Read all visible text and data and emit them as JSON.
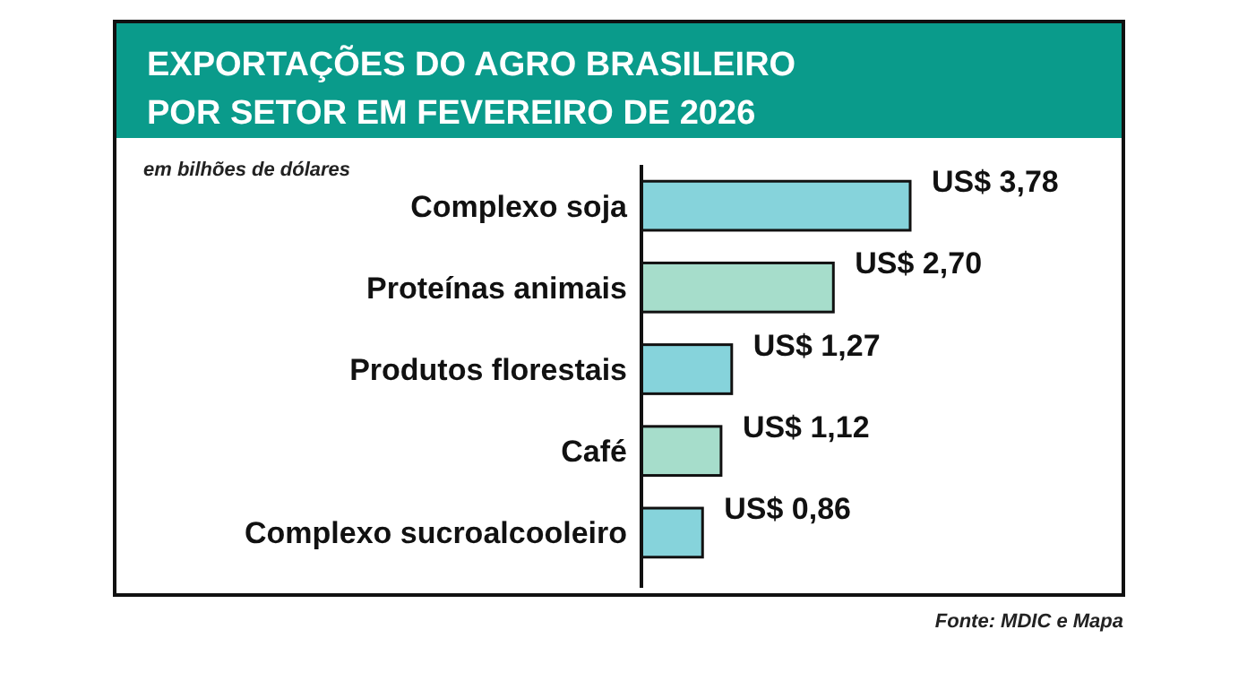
{
  "chart_data": {
    "type": "bar",
    "orientation": "horizontal",
    "title": "EXPORTAÇÕES DO AGRO BRASILEIRO\nPOR SETOR EM FEVEREIRO DE 2026",
    "subtitle": "em bilhões de dólares",
    "annotations": [
      "Fonte: MDIC e Mapa"
    ],
    "categories": [
      "Complexo soja",
      "Proteínas animais",
      "Produtos florestais",
      "Café",
      "Complexo sucroalcooleiro"
    ],
    "values": [
      3.78,
      2.7,
      1.27,
      1.12,
      0.86
    ],
    "colors": [
      "#86d3db",
      "#a6ddcb",
      "#86d3db",
      "#a6ddcb",
      "#86d3db"
    ],
    "value_labels": [
      "US$ 3,78",
      "US$ 2,70",
      "US$ 1,27",
      "US$ 1,12",
      "US$ 0,86"
    ]
  }
}
